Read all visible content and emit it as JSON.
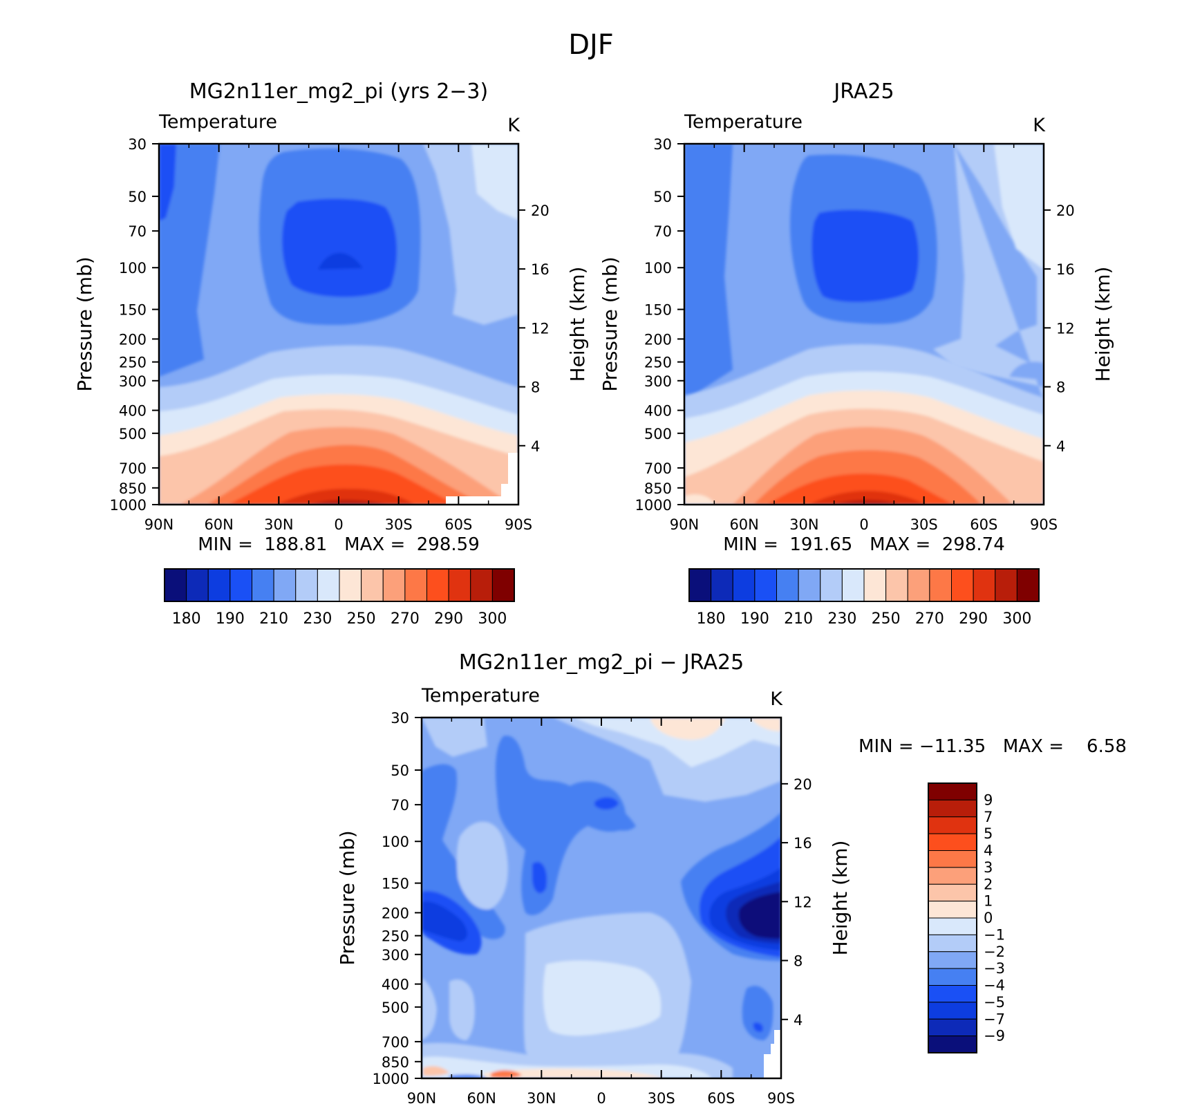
{
  "figure": {
    "title": "DJF"
  },
  "colors": {
    "main_scale": [
      "#0a0f7a",
      "#0d2ab8",
      "#0d3de0",
      "#1a50f5",
      "#4680f2",
      "#80a8f5",
      "#b3ccf8",
      "#d9e8fb",
      "#fde6d6",
      "#fcc5aa",
      "#fca07a",
      "#fd7847",
      "#fd4f1d",
      "#e03310",
      "#b81e0a",
      "#7f0000"
    ],
    "diff_scale": [
      "#0a0f7a",
      "#0d2ab8",
      "#0d3de0",
      "#1a50f5",
      "#4680f2",
      "#80a8f5",
      "#b3ccf8",
      "#d9e8fb",
      "#fde6d6",
      "#fcc5aa",
      "#fca07a",
      "#fd7847",
      "#fd4f1d",
      "#e03310",
      "#b81e0a",
      "#7f0000"
    ]
  },
  "chart_data": [
    {
      "type": "contour",
      "title": "MG2n11er_mg2_pi (yrs 2−3)",
      "subtitle_left": "Temperature",
      "subtitle_right": "K",
      "ylabel": "Pressure (mb)",
      "ylabel_right": "Height (km)",
      "xticks": [
        "90N",
        "60N",
        "30N",
        "0",
        "30S",
        "60S",
        "90S"
      ],
      "yticks": [
        "30",
        "50",
        "70",
        "100",
        "150",
        "200",
        "250",
        "300",
        "400",
        "500",
        "700",
        "850",
        "1000"
      ],
      "yticks_right": [
        "20",
        "16",
        "12",
        "8",
        "4"
      ],
      "stats": "MIN =  188.81   MAX =  298.59",
      "colorbar_labels": [
        "180",
        "190",
        "210",
        "230",
        "250",
        "270",
        "290",
        "300"
      ]
    },
    {
      "type": "contour",
      "title": "JRA25",
      "subtitle_left": "Temperature",
      "subtitle_right": "K",
      "ylabel": "Pressure (mb)",
      "ylabel_right": "Height (km)",
      "xticks": [
        "90N",
        "60N",
        "30N",
        "0",
        "30S",
        "60S",
        "90S"
      ],
      "yticks": [
        "30",
        "50",
        "70",
        "100",
        "150",
        "200",
        "250",
        "300",
        "400",
        "500",
        "700",
        "850",
        "1000"
      ],
      "yticks_right": [
        "20",
        "16",
        "12",
        "8",
        "4"
      ],
      "stats": "MIN =  191.65   MAX =  298.74",
      "colorbar_labels": [
        "180",
        "190",
        "210",
        "230",
        "250",
        "270",
        "290",
        "300"
      ]
    },
    {
      "type": "contour",
      "title": "MG2n11er_mg2_pi − JRA25",
      "subtitle_left": "Temperature",
      "subtitle_right": "K",
      "ylabel": "Pressure (mb)",
      "ylabel_right": "Height (km)",
      "xticks": [
        "90N",
        "60N",
        "30N",
        "0",
        "30S",
        "60S",
        "90S"
      ],
      "yticks": [
        "30",
        "50",
        "70",
        "100",
        "150",
        "200",
        "250",
        "300",
        "400",
        "500",
        "700",
        "850",
        "1000"
      ],
      "yticks_right": [
        "20",
        "16",
        "12",
        "8",
        "4"
      ],
      "stats": "MIN = −11.35   MAX =    6.58",
      "colorbar_labels": [
        "9",
        "7",
        "5",
        "4",
        "3",
        "2",
        "1",
        "0",
        "−1",
        "−2",
        "−3",
        "−4",
        "−5",
        "−7",
        "−9"
      ]
    }
  ]
}
